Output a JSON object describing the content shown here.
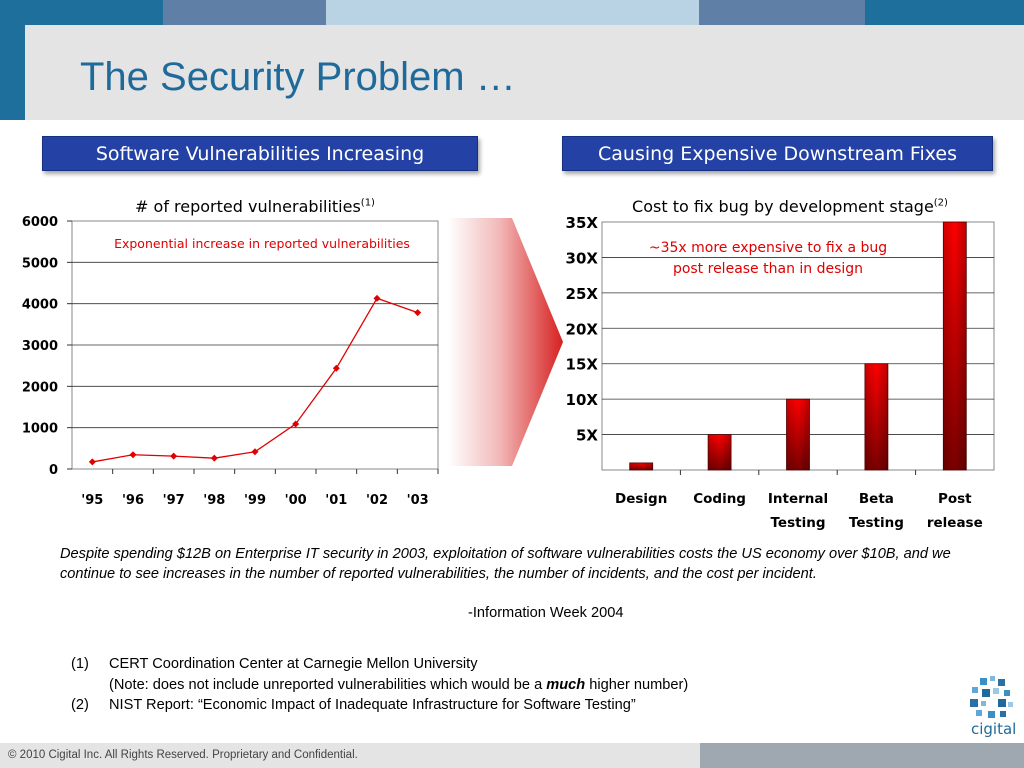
{
  "slide": {
    "title": "The Security Problem …",
    "colors": {
      "top_bar": [
        "#1e6f9c",
        "#5f7fa6",
        "#b9d3e5",
        "#5f7fa6",
        "#1e6f9c"
      ],
      "header_box": "#2442a6",
      "series_red": "#e00000"
    }
  },
  "left_panel": {
    "header": "Software Vulnerabilities Increasing",
    "chart_title": "# of reported vulnerabilities",
    "chart_title_sup": "(1)",
    "annotation": "Exponential increase in reported vulnerabilities"
  },
  "right_panel": {
    "header": "Causing Expensive Downstream Fixes",
    "chart_title": "Cost to fix bug by development stage",
    "chart_title_sup": "(2)",
    "annotation_lines": [
      "~35x more expensive to fix a bug",
      "post release than in design"
    ]
  },
  "chart_data": [
    {
      "type": "line",
      "title": "# of reported vulnerabilities(1)",
      "categories": [
        "'95",
        "'96",
        "'97",
        "'98",
        "'99",
        "'00",
        "'01",
        "'02",
        "'03"
      ],
      "values": [
        171,
        345,
        311,
        262,
        417,
        1090,
        2437,
        4129,
        3784
      ],
      "yticks": [
        "0",
        "1000",
        "2000",
        "3000",
        "4000",
        "5000",
        "6000"
      ],
      "ylim": [
        0,
        6000
      ],
      "grid": true,
      "legend": "none",
      "annotation": "Exponential increase in reported vulnerabilities"
    },
    {
      "type": "bar",
      "title": "Cost to fix bug by development stage(2)",
      "categories": [
        [
          "Design"
        ],
        [
          "Coding"
        ],
        [
          "Internal",
          "Testing"
        ],
        [
          "Beta",
          "Testing"
        ],
        [
          "Post",
          "release"
        ]
      ],
      "values": [
        1,
        5,
        10,
        15,
        35
      ],
      "yticks": [
        "5X",
        "10X",
        "15X",
        "20X",
        "25X",
        "30X",
        "35X"
      ],
      "ylim": [
        0,
        35
      ],
      "grid": true,
      "legend": "none",
      "annotation": "~35x more expensive to fix a bug post release than in design"
    }
  ],
  "quote": {
    "text": "Despite spending $12B on Enterprise IT security in 2003, exploitation of software vulnerabilities costs the US economy over $10B, and we continue to see increases in the number of reported vulnerabilities, the number of incidents, and the cost per incident.",
    "source": "-Information Week 2004"
  },
  "footnotes": {
    "n1": "(1)",
    "n1_text": "CERT Coordination Center at Carnegie Mellon University",
    "n1_note_pre": "(Note: does not include unreported vulnerabilities which would be a ",
    "n1_note_em": "much",
    "n1_note_post": " higher number)",
    "n2": "(2)",
    "n2_text": "NIST Report: “Economic Impact of Inadequate Infrastructure for Software Testing”"
  },
  "footer": {
    "copyright": "© 2010 Cigital Inc. All Rights Reserved. Proprietary and Confidential.",
    "logo_text": "cigital",
    "logo_icon": "cigital-logo-icon"
  }
}
